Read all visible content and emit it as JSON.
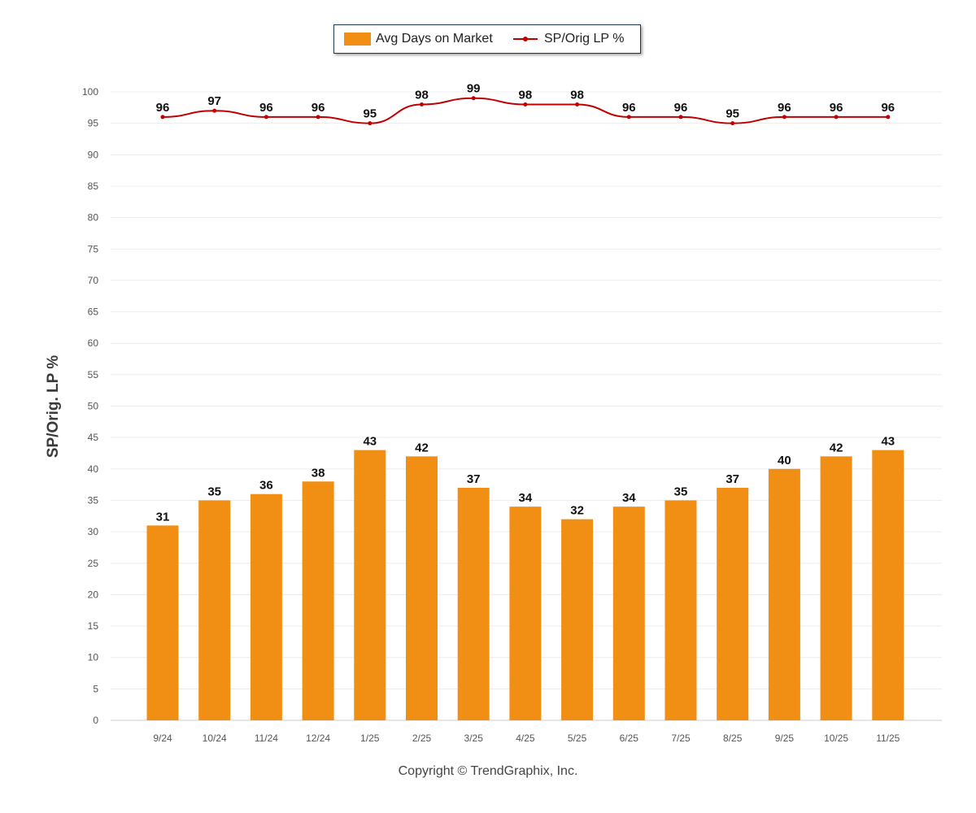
{
  "legend": {
    "bar_label": "Avg Days on Market",
    "line_label": "SP/Orig LP %"
  },
  "footer": "Copyright © TrendGraphix, Inc.",
  "colors": {
    "bar": "#f18e14",
    "line": "#c00000",
    "grid": "#ececec",
    "legend_border": "#1f3550"
  },
  "chart_data": {
    "type": "bar",
    "categories": [
      "9/24",
      "10/24",
      "11/24",
      "12/24",
      "1/25",
      "2/25",
      "3/25",
      "4/25",
      "5/25",
      "6/25",
      "7/25",
      "8/25",
      "9/25",
      "10/25",
      "11/25"
    ],
    "series": [
      {
        "name": "Avg Days on Market",
        "type": "bar",
        "values": [
          31,
          35,
          36,
          38,
          43,
          42,
          37,
          34,
          32,
          34,
          35,
          37,
          40,
          42,
          43
        ]
      },
      {
        "name": "SP/Orig LP %",
        "type": "line",
        "values": [
          96,
          97,
          96,
          96,
          95,
          98,
          99,
          98,
          98,
          96,
          96,
          95,
          96,
          96,
          96
        ]
      }
    ],
    "ylabel": "SP/Orig. LP %",
    "ylim": [
      0,
      100
    ],
    "yticks": [
      0,
      5,
      10,
      15,
      20,
      25,
      30,
      35,
      40,
      45,
      50,
      55,
      60,
      65,
      70,
      75,
      80,
      85,
      90,
      95,
      100
    ],
    "grid": true,
    "legend_position": "top-center",
    "data_labels": true
  }
}
